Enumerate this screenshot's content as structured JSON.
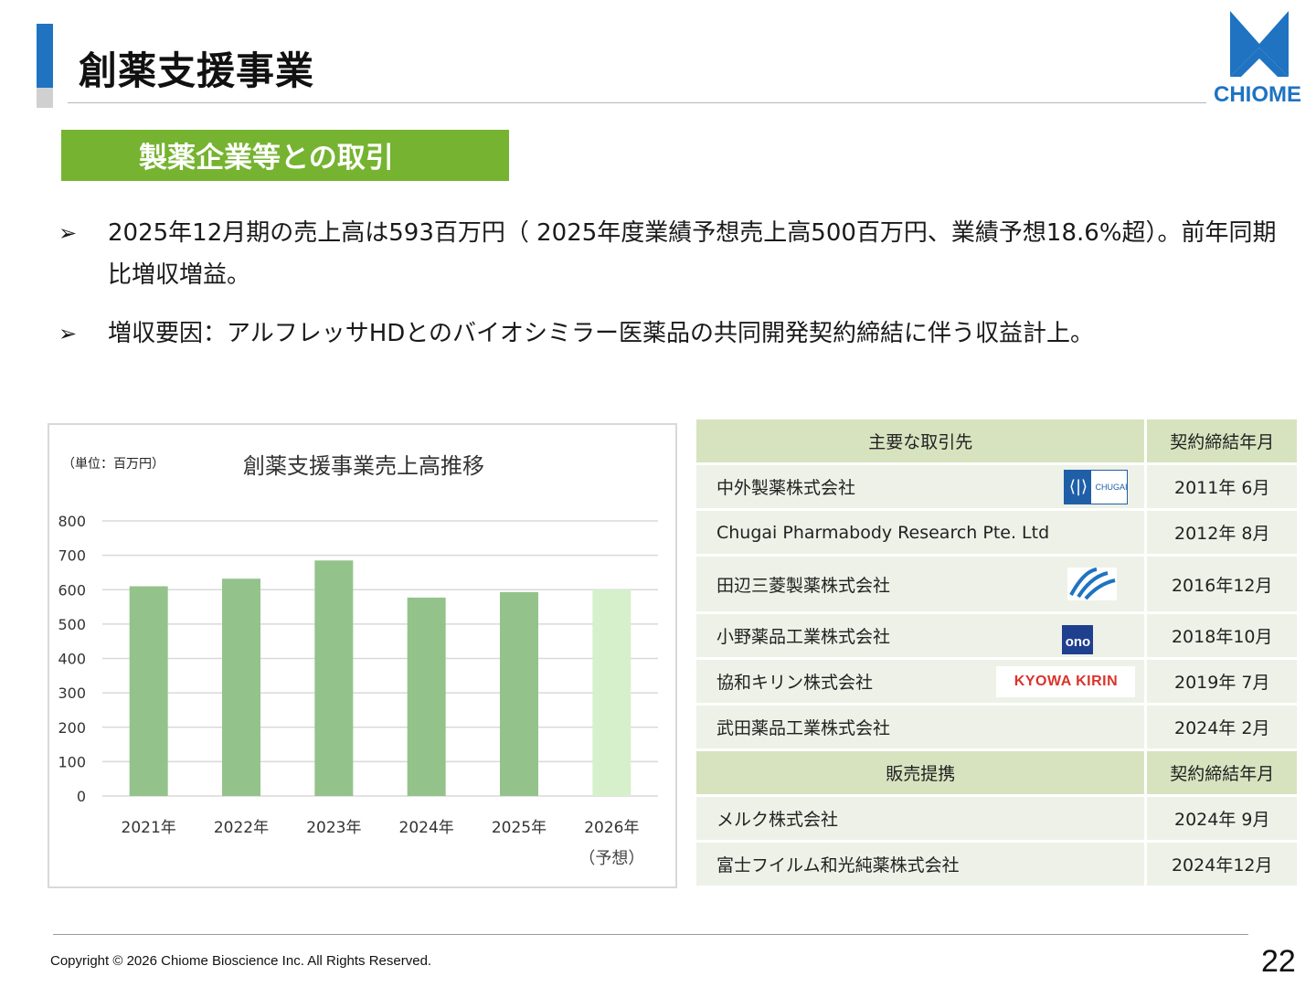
{
  "header": {
    "title": "創薬支援事業",
    "logo_text": "CHIOME",
    "accent_color": "#1f73c1"
  },
  "section": {
    "banner": "製薬企業等との取引",
    "banner_color": "#76b331"
  },
  "bullets": [
    "2025年12月期の売上高は593百万円（ 2025年度業績予想売上高500百万円、業績予想18.6%超）。前年同期比増収増益。",
    "増収要因：アルフレッサHDとのバイオシミラー医薬品の共同開発契約締結に伴う収益計上。"
  ],
  "chart_data": {
    "type": "bar",
    "title": "創薬支援事業売上高推移",
    "unit_note": "（単位：百万円）",
    "categories": [
      "2021年",
      "2022年",
      "2023年",
      "2024年",
      "2025年",
      "2026年"
    ],
    "category_notes": [
      "",
      "",
      "",
      "",
      "",
      "（予想）"
    ],
    "values": [
      610,
      632,
      685,
      577,
      593,
      600
    ],
    "forecast_index": 5,
    "ylim": [
      0,
      800
    ],
    "yticks": [
      0,
      100,
      200,
      300,
      400,
      500,
      600,
      700,
      800
    ],
    "grid": true,
    "colors": {
      "actual": "#93c38a",
      "forecast": "#d6f0cc"
    }
  },
  "partners_table": {
    "header": {
      "name": "主要な取引先",
      "date": "契約締結年月"
    },
    "rows": [
      {
        "name": "中外製薬株式会社",
        "date": "2011年 6月",
        "logo": "chugai-logo",
        "logo_text": "CHUGAI"
      },
      {
        "name": "Chugai Pharmabody Research Pte. Ltd",
        "date": "2012年 8月",
        "logo": ""
      },
      {
        "name": "田辺三菱製薬株式会社",
        "date": "2016年12月",
        "logo": "tanabe-mitsubishi-logo"
      },
      {
        "name": "小野薬品工業株式会社",
        "date": "2018年10月",
        "logo": "ono-logo",
        "logo_text": "ono"
      },
      {
        "name": "協和キリン株式会社",
        "date": "2019年 7月",
        "logo": "kyowa-kirin-logo",
        "logo_text": "KYOWA KIRIN"
      },
      {
        "name": "武田薬品工業株式会社",
        "date": "2024年 2月",
        "logo": ""
      }
    ],
    "sales_header": {
      "name": "販売提携",
      "date": "契約締結年月"
    },
    "sales_rows": [
      {
        "name": "メルク株式会社",
        "date": "2024年 9月"
      },
      {
        "name": "富士フイルム和光純薬株式会社",
        "date": "2024年12月"
      }
    ]
  },
  "footer": {
    "copyright": "Copyright © 2026 Chiome Bioscience Inc. All Rights Reserved.",
    "page_number": "22"
  }
}
